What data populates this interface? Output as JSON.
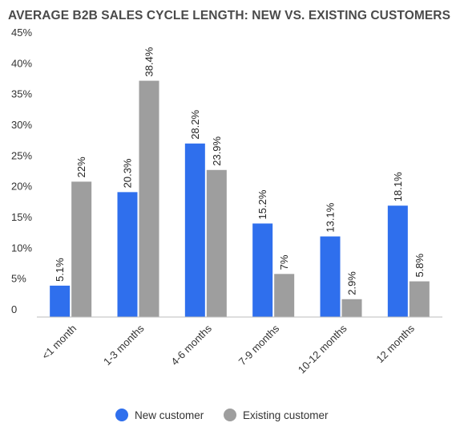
{
  "chart_data": {
    "type": "bar",
    "title": "AVERAGE B2B SALES CYCLE LENGTH: NEW VS. EXISTING CUSTOMERS",
    "xlabel": "",
    "ylabel": "",
    "categories": [
      "<1 month",
      "1-3 months",
      "4-6 months",
      "7-9 months",
      "10-12 months",
      "12 months"
    ],
    "series": [
      {
        "name": "New customer",
        "color": "#2f6fed",
        "values": [
          5.1,
          20.3,
          28.2,
          15.2,
          13.1,
          18.1
        ],
        "labels": [
          "5.1%",
          "20.3%",
          "28.2%",
          "15.2%",
          "13.1%",
          "18.1%"
        ]
      },
      {
        "name": "Existing customer",
        "color": "#9e9e9e",
        "values": [
          22,
          38.4,
          23.9,
          7,
          2.9,
          5.8
        ],
        "labels": [
          "22%",
          "38.4%",
          "23.9%",
          "7%",
          "2.9%",
          "5.8%"
        ]
      }
    ],
    "ylim": [
      0,
      45
    ],
    "yticks": [
      0,
      5,
      10,
      15,
      20,
      25,
      30,
      35,
      40,
      45
    ],
    "ytick_labels": [
      "0",
      "5%",
      "10%",
      "15%",
      "20%",
      "25%",
      "30%",
      "35%",
      "40%",
      "45%"
    ],
    "grid": false,
    "legend_position": "bottom"
  }
}
